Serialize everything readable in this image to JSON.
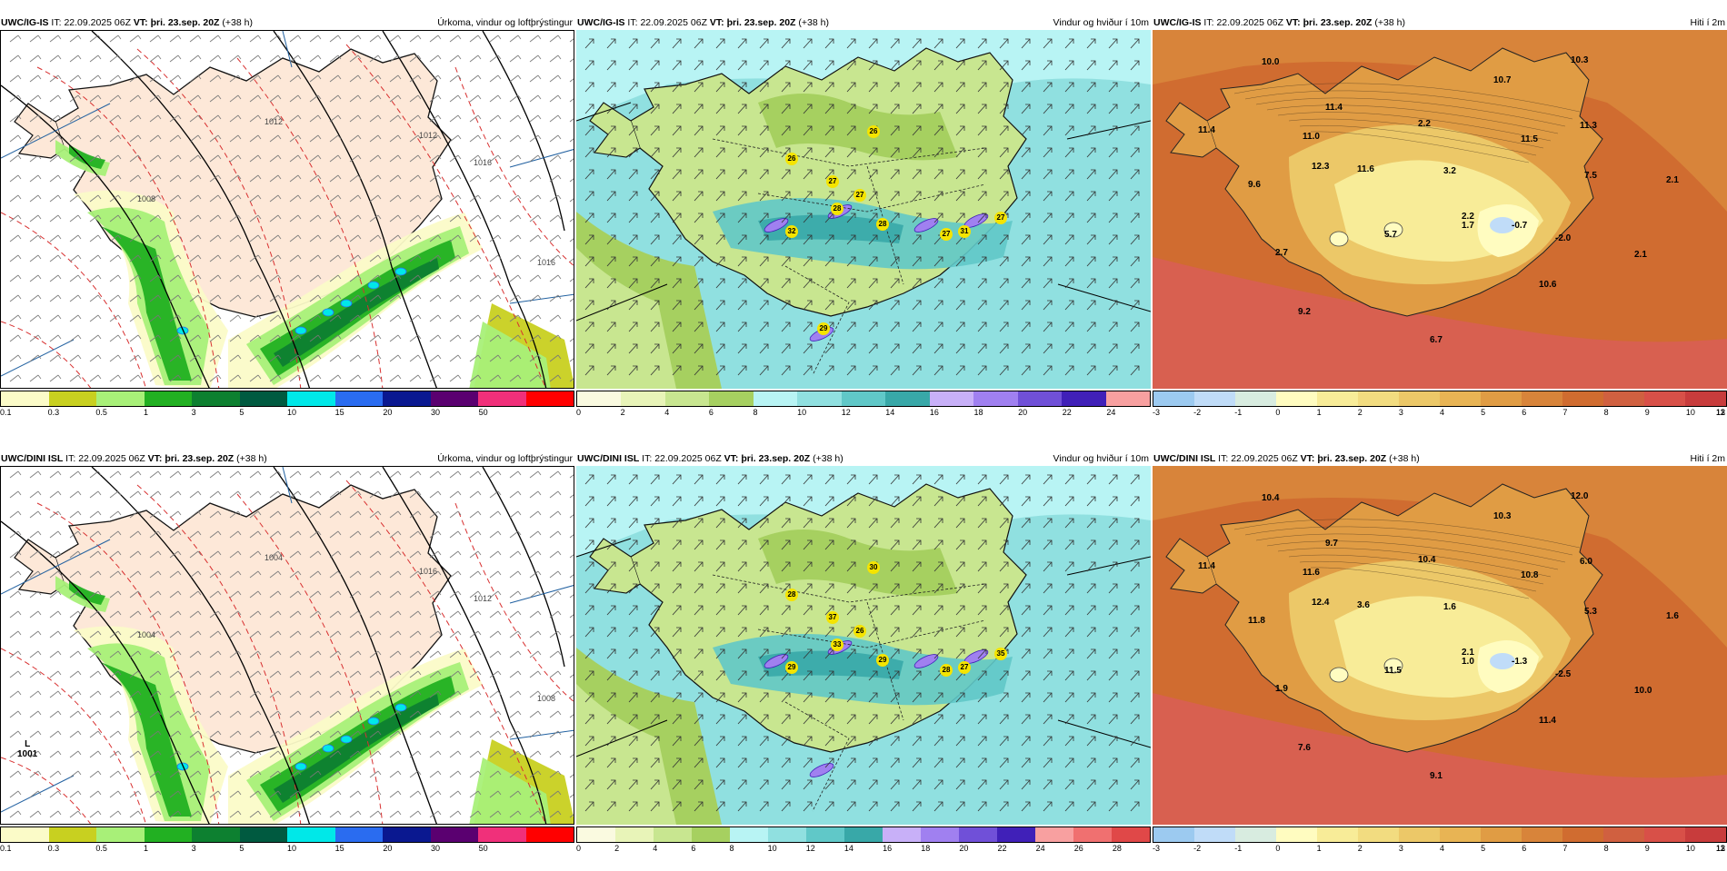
{
  "panels": [
    {
      "id": "p1",
      "source": "UWC/IG-IS",
      "it_label": "IT:",
      "it_value": "22.09.2025 06Z",
      "vt_label": "VT:",
      "vt_value": "þri. 23.sep. 20Z",
      "lead": "(+38 h)",
      "product": "Úrkoma, vindur og loftþrýstingur",
      "legend_colors": [
        "#fbfbc8",
        "#c8d020",
        "#a8f078",
        "#22b022",
        "#0d8030",
        "#005a40",
        "#00e8e8",
        "#2a6cf0",
        "#0a1890",
        "#5a0070",
        "#f0307a",
        "#ff0000"
      ],
      "legend_ticks": [
        "0.1",
        "0.3",
        "0.5",
        "1",
        "3",
        "5",
        "10",
        "15",
        "20",
        "30",
        "50"
      ],
      "isobars": [
        "1012",
        "1016",
        "1016",
        "1012",
        "1008"
      ],
      "low_center": null
    },
    {
      "id": "p2",
      "source": "UWC/IG-IS",
      "it_label": "IT:",
      "it_value": "22.09.2025 06Z",
      "vt_label": "VT:",
      "vt_value": "þri. 23.sep. 20Z",
      "lead": "(+38 h)",
      "product": "Vindur og hviður í 10m",
      "legend_colors": [
        "#fafae0",
        "#e8f4b8",
        "#c8e690",
        "#a6d060",
        "#b8f4f4",
        "#90e0e0",
        "#60c8c8",
        "#38a8a8",
        "#c8b0f8",
        "#a080f0",
        "#7050d8",
        "#4020b8",
        "#f8a0a0"
      ],
      "legend_ticks": [
        "0",
        "2",
        "4",
        "6",
        "8",
        "10",
        "12",
        "14",
        "16",
        "18",
        "20",
        "22",
        "24"
      ],
      "gust_labels": [
        "26",
        "26",
        "27",
        "27",
        "28",
        "28",
        "32",
        "31",
        "27",
        "27",
        "29"
      ]
    },
    {
      "id": "p3",
      "source": "UWC/IG-IS",
      "it_label": "IT:",
      "it_value": "22.09.2025 06Z",
      "vt_label": "VT:",
      "vt_value": "þri. 23.sep. 20Z",
      "lead": "(+38 h)",
      "product": "Hiti í 2m",
      "legend_colors": [
        "#9ccaf0",
        "#c0dcf8",
        "#d8ece0",
        "#fffcc0",
        "#f8ec98",
        "#f2dc80",
        "#ecc868",
        "#e8b454",
        "#e09c44",
        "#d8843a",
        "#d06c30",
        "#d06040",
        "#d85048",
        "#c83c3c"
      ],
      "legend_ticks": [
        "-3",
        "-2",
        "-1",
        "0",
        "1",
        "2",
        "3",
        "4",
        "5",
        "6",
        "7",
        "8",
        "9",
        "10",
        "11",
        "12",
        "13"
      ],
      "temps": [
        "10.0",
        "10.3",
        "10.7",
        "11.4",
        "11.0",
        "11.4",
        "2.2",
        "11.3",
        "12.3",
        "11.6",
        "3.2",
        "7.5",
        "11.5",
        "9.6",
        "2.1",
        "2.7",
        "5.7",
        "1.7",
        "-0.7",
        "-2.0",
        "2.1",
        "10.6",
        "9.2",
        "6.7",
        "2.2"
      ]
    },
    {
      "id": "p4",
      "source": "UWC/DINI ISL",
      "it_label": "IT:",
      "it_value": "22.09.2025 06Z",
      "vt_label": "VT:",
      "vt_value": "þri. 23.sep. 20Z",
      "lead": "(+38 h)",
      "product": "Úrkoma, vindur og loftþrýstingur",
      "legend_colors": [
        "#fbfbc8",
        "#c8d020",
        "#a8f078",
        "#22b022",
        "#0d8030",
        "#005a40",
        "#00e8e8",
        "#2a6cf0",
        "#0a1890",
        "#5a0070",
        "#f0307a",
        "#ff0000"
      ],
      "legend_ticks": [
        "0.1",
        "0.3",
        "0.5",
        "1",
        "3",
        "5",
        "10",
        "15",
        "20",
        "30",
        "50"
      ],
      "isobars": [
        "1004",
        "1012",
        "1008",
        "1016",
        "1004"
      ],
      "low_center": {
        "letter": "L",
        "value": "1001"
      }
    },
    {
      "id": "p5",
      "source": "UWC/DINI ISL",
      "it_label": "IT:",
      "it_value": "22.09.2025 06Z",
      "vt_label": "VT:",
      "vt_value": "þri. 23.sep. 20Z",
      "lead": "(+38 h)",
      "product": "Vindur og hviður í 10m",
      "legend_colors": [
        "#fafae0",
        "#e8f4b8",
        "#c8e690",
        "#a6d060",
        "#b8f4f4",
        "#90e0e0",
        "#60c8c8",
        "#38a8a8",
        "#c8b0f8",
        "#a080f0",
        "#7050d8",
        "#4020b8",
        "#f8a0a0",
        "#f07070",
        "#e04848"
      ],
      "legend_ticks": [
        "0",
        "2",
        "4",
        "6",
        "8",
        "10",
        "12",
        "14",
        "16",
        "18",
        "20",
        "22",
        "24",
        "26",
        "28"
      ],
      "gust_labels": [
        "28",
        "30",
        "37",
        "26",
        "33",
        "29",
        "29",
        "27",
        "28",
        "35"
      ]
    },
    {
      "id": "p6",
      "source": "UWC/DINI ISL",
      "it_label": "IT:",
      "it_value": "22.09.2025 06Z",
      "vt_label": "VT:",
      "vt_value": "þri. 23.sep. 20Z",
      "lead": "(+38 h)",
      "product": "Hiti í 2m",
      "legend_colors": [
        "#9ccaf0",
        "#c0dcf8",
        "#d8ece0",
        "#fffcc0",
        "#f8ec98",
        "#f2dc80",
        "#ecc868",
        "#e8b454",
        "#e09c44",
        "#d8843a",
        "#d06c30",
        "#d06040",
        "#d85048",
        "#c83c3c"
      ],
      "legend_ticks": [
        "-3",
        "-2",
        "-1",
        "0",
        "1",
        "2",
        "3",
        "4",
        "5",
        "6",
        "7",
        "8",
        "9",
        "10",
        "11",
        "12",
        "13"
      ],
      "temps": [
        "10.4",
        "12.0",
        "10.3",
        "9.7",
        "11.6",
        "11.4",
        "10.4",
        "6.0",
        "12.4",
        "3.6",
        "1.6",
        "5.3",
        "10.8",
        "11.8",
        "1.6",
        "1.9",
        "11.5",
        "1.0",
        "-1.3",
        "-2.5",
        "10.0",
        "11.4",
        "7.6",
        "9.1",
        "2.1"
      ]
    }
  ]
}
